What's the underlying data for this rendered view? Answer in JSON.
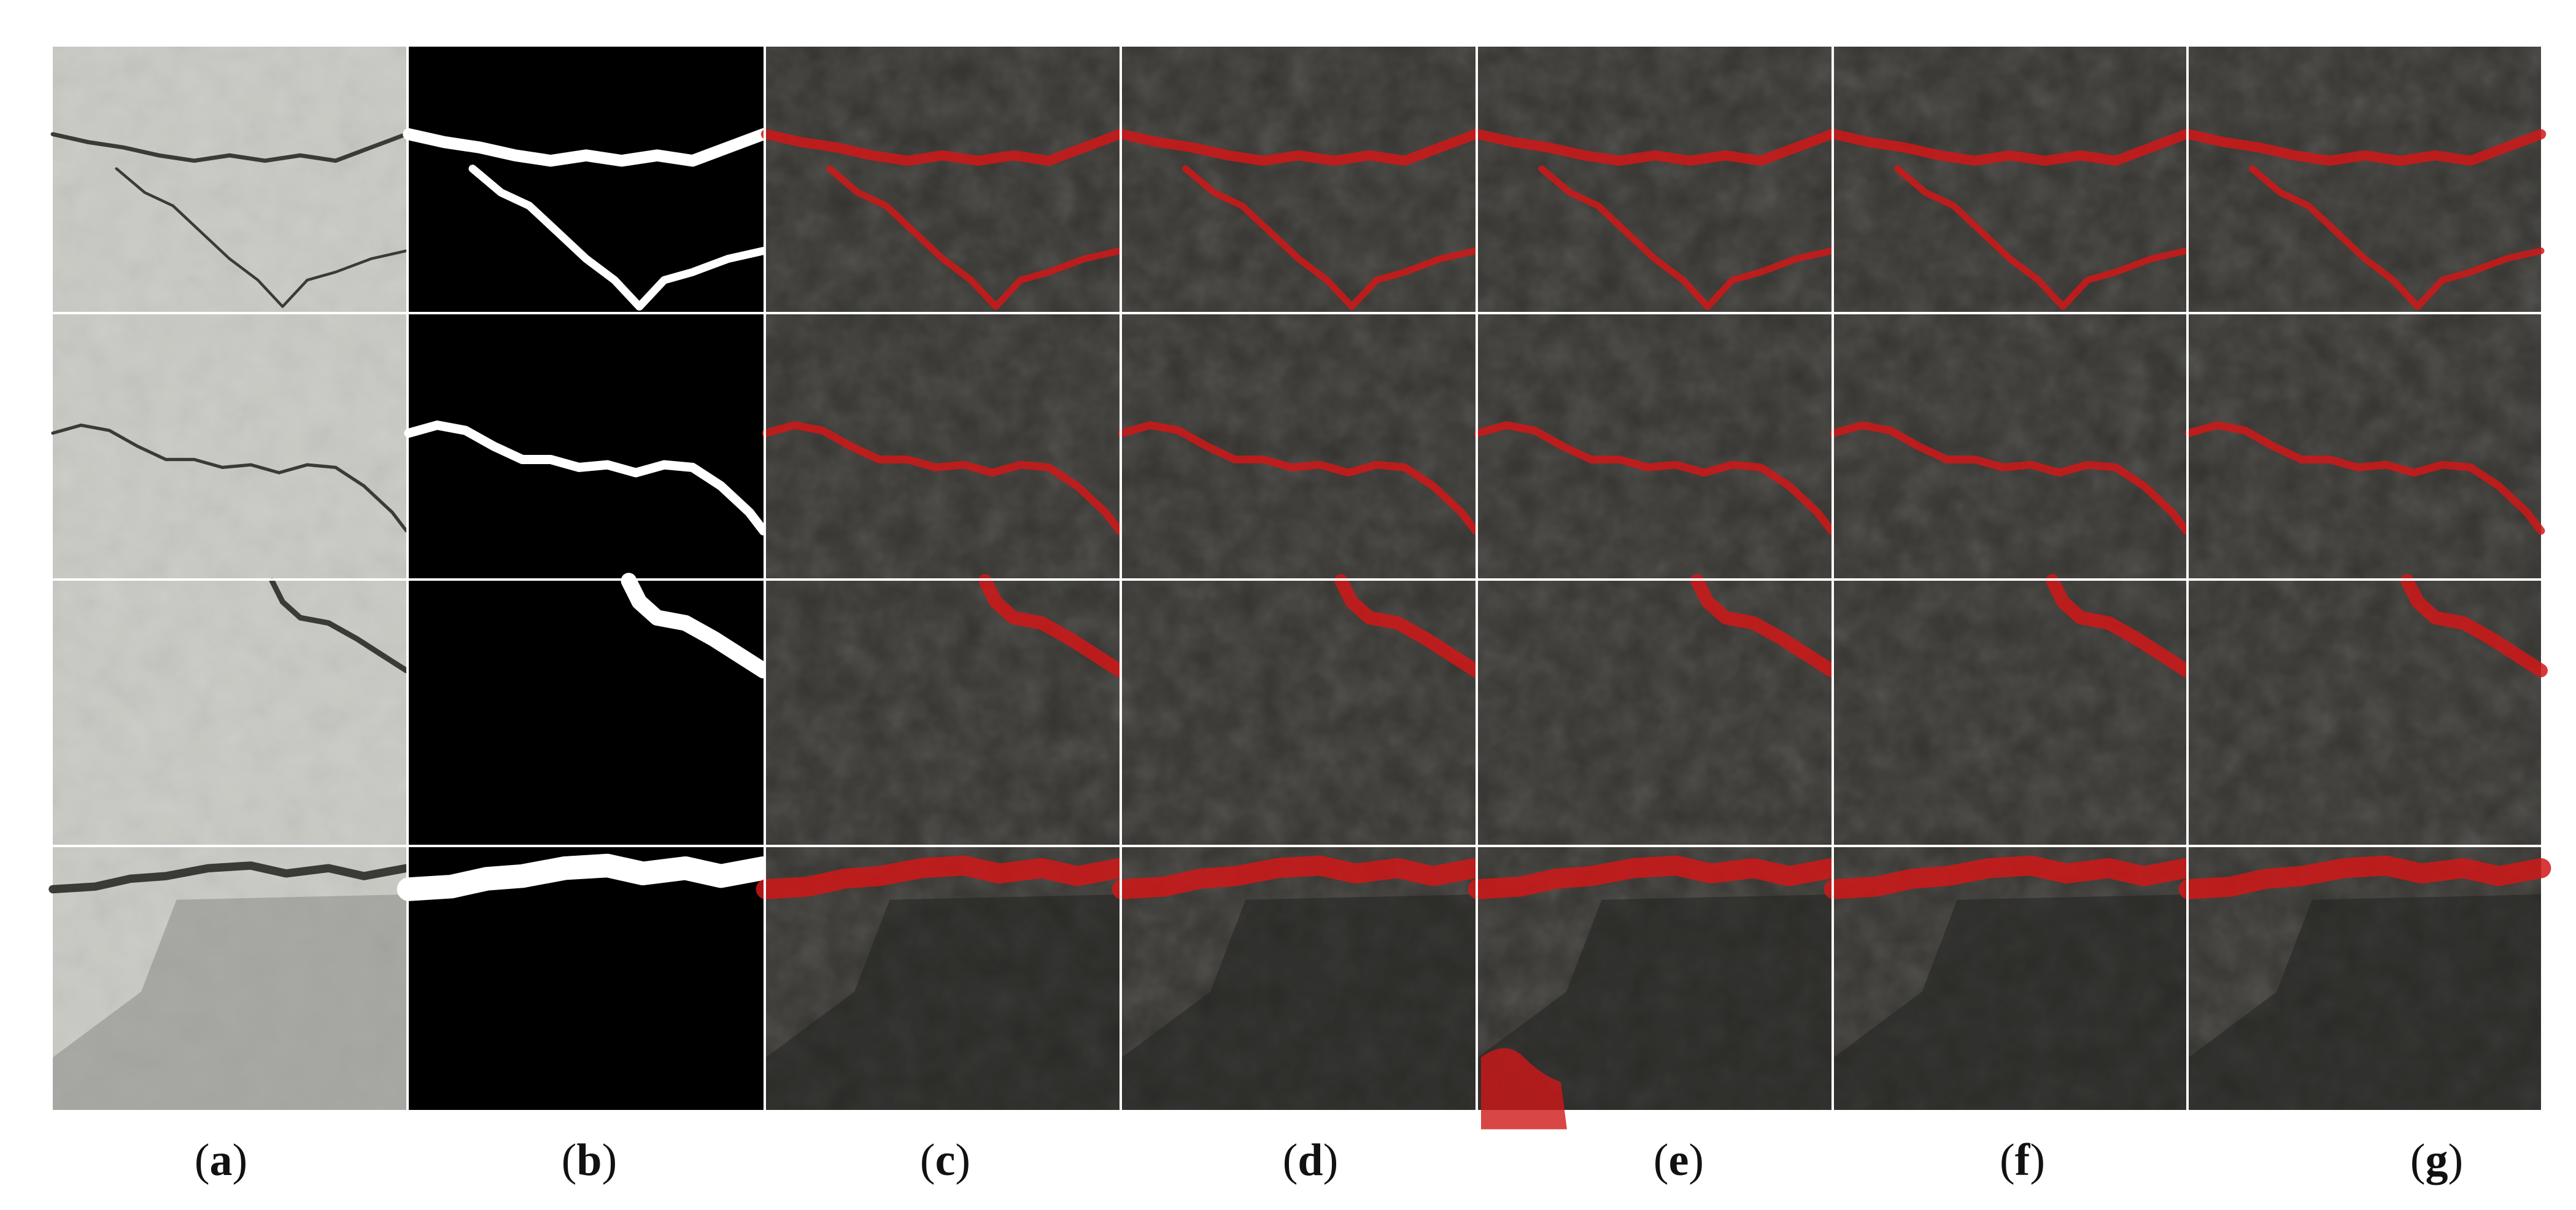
{
  "figure": {
    "columns": [
      {
        "id": "a",
        "kind": "photo",
        "label": "a"
      },
      {
        "id": "b",
        "kind": "mask",
        "label": "b"
      },
      {
        "id": "c",
        "kind": "overlay",
        "label": "c"
      },
      {
        "id": "d",
        "kind": "overlay",
        "label": "d"
      },
      {
        "id": "e",
        "kind": "overlay",
        "label": "e"
      },
      {
        "id": "f",
        "kind": "overlay",
        "label": "f"
      },
      {
        "id": "g",
        "kind": "overlay",
        "label": "g"
      }
    ],
    "rows": 4,
    "colors": {
      "background": "#ffffff",
      "grid_line": "#ffffff",
      "crack_overlay": "#d01818",
      "mask_crack": "#ffffff",
      "mask_background": "#000000",
      "photo_surface_light": "#c9c9c4",
      "photo_surface_dark": "#34332f"
    },
    "captions": [
      "(a)",
      "(b)",
      "(c)",
      "(d)",
      "(e)",
      "(f)",
      "(g)"
    ]
  }
}
